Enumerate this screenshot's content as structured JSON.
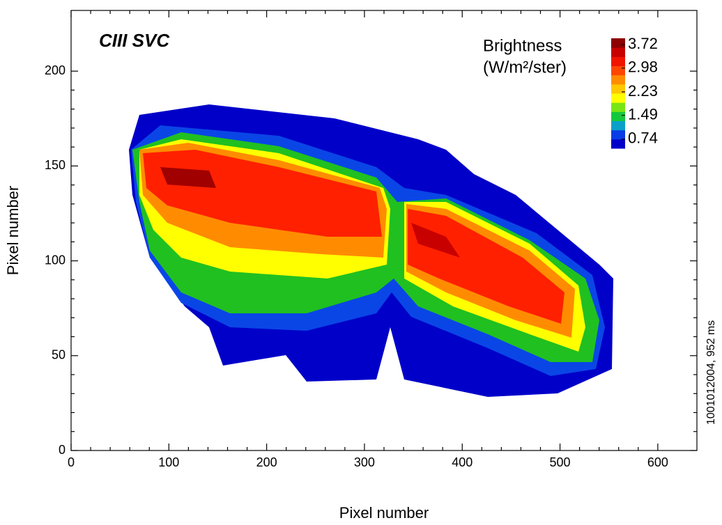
{
  "chart_data": {
    "type": "contour",
    "title": "CIII SVC",
    "xlabel": "Pixel number",
    "ylabel": "Pixel number",
    "side_note": "1001012004, 952 ms",
    "colorbar_title": "Brightness",
    "colorbar_units": "(W/m²/ster)",
    "xlim": [
      0,
      640
    ],
    "xticks": [
      0,
      100,
      200,
      300,
      400,
      500,
      600
    ],
    "ylim": [
      0,
      232
    ],
    "yticks": [
      0,
      50,
      100,
      150,
      200
    ],
    "clim": [
      0.45,
      3.92
    ],
    "cticks": [
      0.74,
      1.49,
      2.23,
      2.98,
      3.72
    ],
    "colormap": [
      "#0000c8",
      "#0a3ce6",
      "#0aa0c8",
      "#14c83c",
      "#78e614",
      "#ffff00",
      "#ffc800",
      "#ff8c00",
      "#ff4600",
      "#f01400",
      "#c80000",
      "#8c0000"
    ]
  }
}
